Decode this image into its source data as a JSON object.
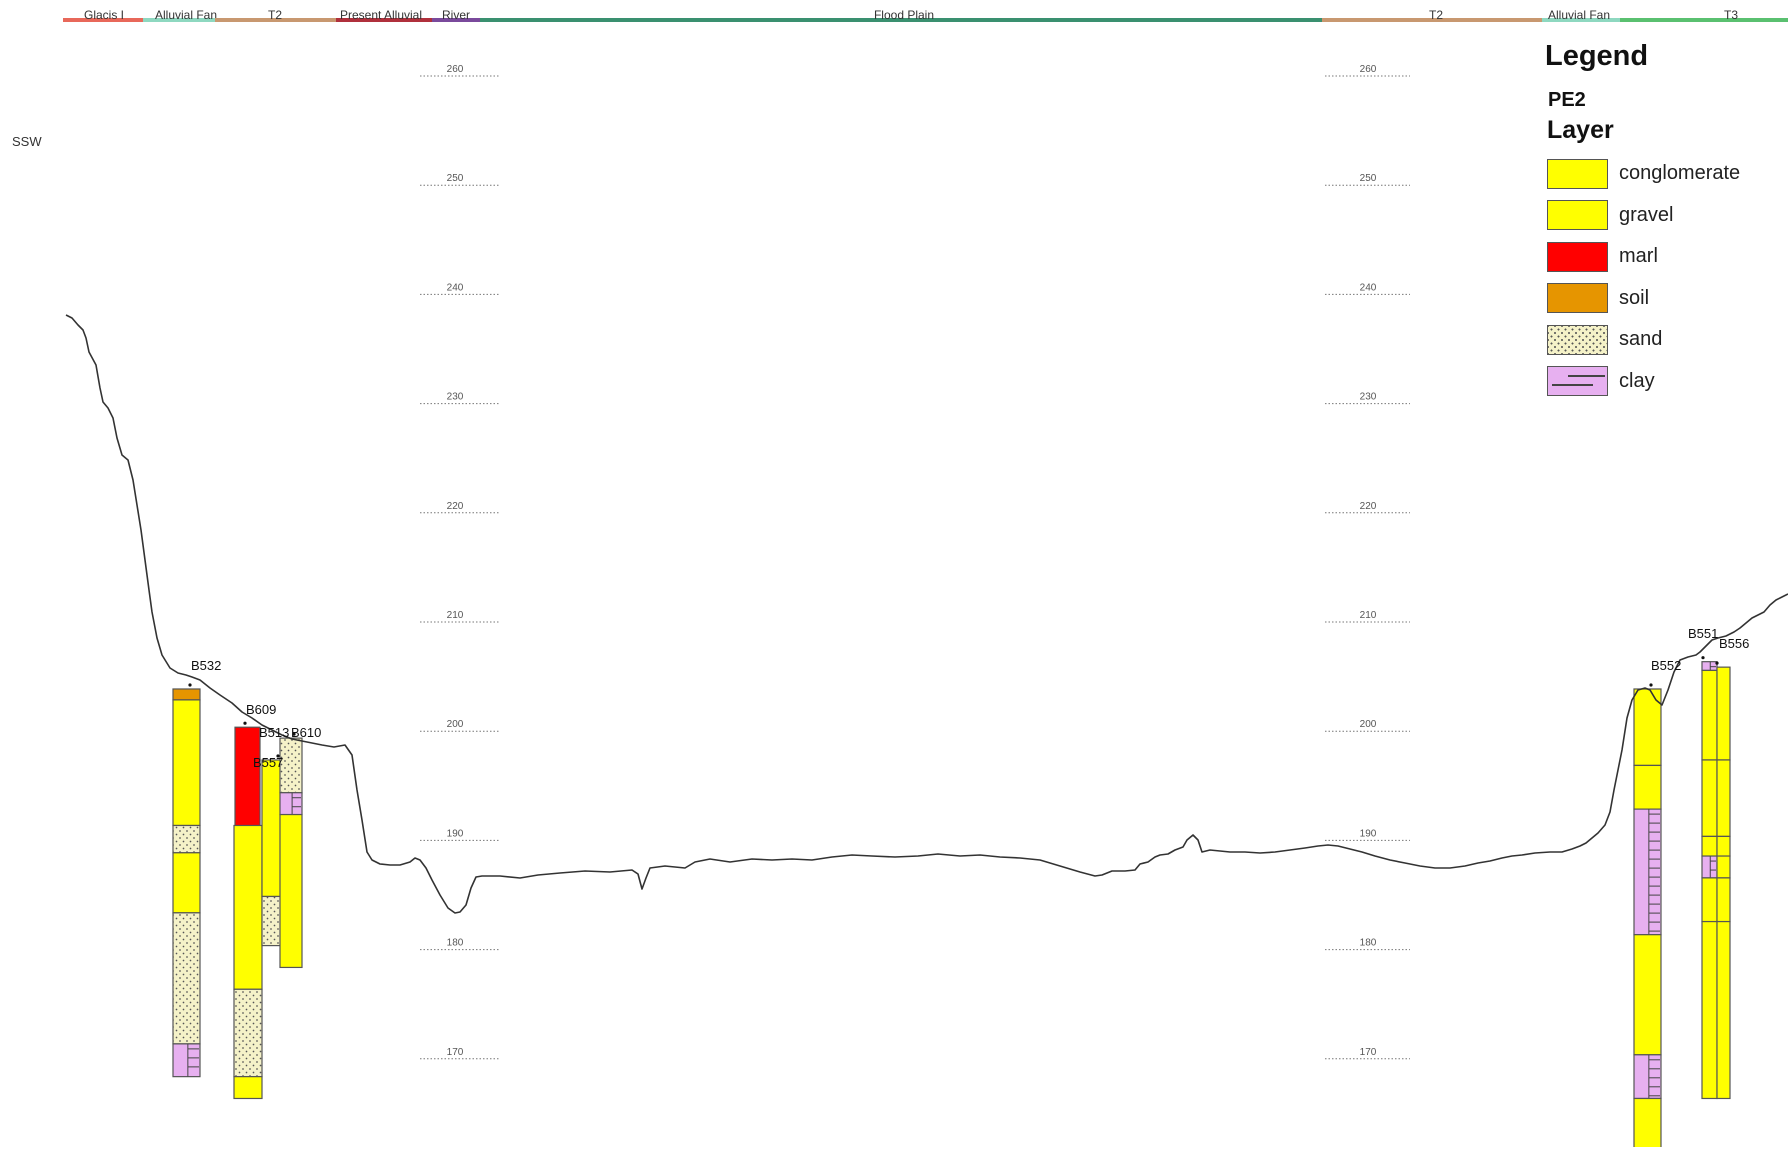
{
  "units": [
    {
      "name": "Glacis I",
      "color": "#e8685a"
    },
    {
      "name": "Alluvial Fan",
      "color": "#8ed8c0"
    },
    {
      "name": "T2",
      "color": "#c89870"
    },
    {
      "name": "Present Alluvial",
      "color": "#b0303c"
    },
    {
      "name": "River",
      "color": "#7a4a9c"
    },
    {
      "name": "Flood Plain",
      "color": "#3a9070"
    },
    {
      "name": "T2",
      "color": "#c89870"
    },
    {
      "name": "Alluvial Fan",
      "color": "#8ed8c0"
    },
    {
      "name": "T3",
      "color": "#5ac070"
    }
  ],
  "direction_label": "SSW",
  "elevation_labels": [
    "260",
    "250",
    "240",
    "230",
    "220",
    "210",
    "200",
    "190",
    "180",
    "170"
  ],
  "legend": {
    "title": "Legend",
    "subtitle": "PE2",
    "layer_title": "Layer",
    "items": [
      {
        "key": "conglomerate",
        "label": "conglomerate",
        "color": "#ffff00"
      },
      {
        "key": "gravel",
        "label": "gravel",
        "color": "#ffff00"
      },
      {
        "key": "marl",
        "label": "marl",
        "color": "#ff0000"
      },
      {
        "key": "soil",
        "label": "soil",
        "color": "#e69500"
      },
      {
        "key": "sand",
        "label": "sand",
        "color": "#f5f2c8"
      },
      {
        "key": "clay",
        "label": "clay",
        "color": "#e7b0f0"
      }
    ]
  },
  "boreholes": [
    {
      "id": "B532",
      "top": 203.5,
      "layers": [
        {
          "type": "soil",
          "from": 203.5,
          "to": 202.5
        },
        {
          "type": "gravel",
          "from": 202.5,
          "to": 191.0
        },
        {
          "type": "sand",
          "from": 191.0,
          "to": 188.5
        },
        {
          "type": "gravel",
          "from": 188.5,
          "to": 183.0
        },
        {
          "type": "sand",
          "from": 183.0,
          "to": 171.0
        },
        {
          "type": "clay",
          "from": 171.0,
          "to": 168.0
        }
      ]
    },
    {
      "id": "B609",
      "top": 200.0,
      "layers": [
        {
          "type": "marl",
          "from": 200.0,
          "to": 189.5
        },
        {
          "type": "gravel",
          "from": 189.5,
          "to": 185.5
        }
      ]
    },
    {
      "id": "B557",
      "top": 191.0,
      "layers": [
        {
          "type": "gravel",
          "from": 191.0,
          "to": 176.0
        },
        {
          "type": "sand",
          "from": 176.0,
          "to": 168.0
        },
        {
          "type": "gravel",
          "from": 168.0,
          "to": 166.0
        }
      ]
    },
    {
      "id": "B513",
      "top": 197.0,
      "layers": [
        {
          "type": "gravel",
          "from": 197.0,
          "to": 184.5
        },
        {
          "type": "sand",
          "from": 184.5,
          "to": 180.0
        }
      ]
    },
    {
      "id": "B610",
      "top": 199.0,
      "layers": [
        {
          "type": "sand",
          "from": 199.0,
          "to": 194.0
        },
        {
          "type": "clay",
          "from": 194.0,
          "to": 192.0
        },
        {
          "type": "gravel",
          "from": 192.0,
          "to": 178.0
        }
      ]
    },
    {
      "id": "B552",
      "top": 203.5,
      "layers": [
        {
          "type": "gravel",
          "from": 203.5,
          "to": 196.5
        },
        {
          "type": "gravel",
          "from": 196.5,
          "to": 192.5
        },
        {
          "type": "clay",
          "from": 192.5,
          "to": 181.0
        },
        {
          "type": "gravel",
          "from": 181.0,
          "to": 170.0
        },
        {
          "type": "clay",
          "from": 170.0,
          "to": 166.0
        },
        {
          "type": "gravel",
          "from": 166.0,
          "to": 161.0
        }
      ]
    },
    {
      "id": "B551",
      "top": 206.0,
      "layers": [
        {
          "type": "clay",
          "from": 206.0,
          "to": 205.2
        },
        {
          "type": "gravel",
          "from": 205.2,
          "to": 197.0
        },
        {
          "type": "gravel",
          "from": 197.0,
          "to": 190.0
        },
        {
          "type": "gravel",
          "from": 190.0,
          "to": 188.2
        },
        {
          "type": "clay",
          "from": 188.2,
          "to": 186.2
        },
        {
          "type": "gravel",
          "from": 186.2,
          "to": 182.2
        },
        {
          "type": "gravel",
          "from": 182.2,
          "to": 166.0
        }
      ]
    },
    {
      "id": "B556",
      "top": 205.5,
      "layers": [
        {
          "type": "gravel",
          "from": 205.5,
          "to": 197.0
        },
        {
          "type": "gravel",
          "from": 197.0,
          "to": 190.0
        },
        {
          "type": "gravel",
          "from": 190.0,
          "to": 188.2
        },
        {
          "type": "gravel",
          "from": 188.2,
          "to": 186.2
        },
        {
          "type": "gravel",
          "from": 186.2,
          "to": 182.2
        },
        {
          "type": "gravel",
          "from": 182.2,
          "to": 166.0
        }
      ]
    }
  ]
}
